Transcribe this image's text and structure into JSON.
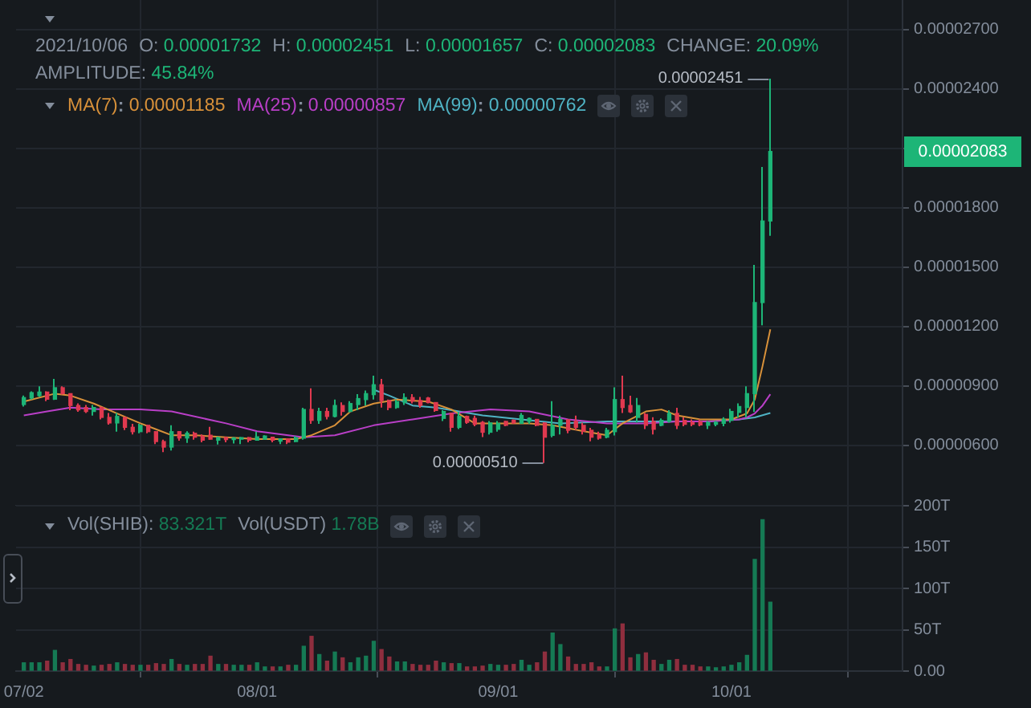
{
  "chart_data": [
    {
      "type": "candlestick",
      "annotations": [
        "2021/10/06",
        "O: 0.00001732",
        "H: 0.00002451",
        "L: 0.00001657",
        "C: 0.00002083",
        "CHANGE: 20.09%",
        "AMPLITUDE: 45.84%",
        {
          "text": "0.00002451",
          "x": "2021-10-06",
          "y": 2.451e-05
        },
        {
          "text": "0.00000510",
          "x": "2021-09-07",
          "y": 5.1e-06
        },
        "0.00002083",
        "0.00001185",
        "0.00000857",
        "0.00000762"
      ],
      "series": [
        {
          "x": [
            "2021-07-02",
            "2021-07-03",
            "2021-07-04",
            "2021-07-05",
            "2021-07-06",
            "2021-07-07",
            "2021-07-08",
            "2021-07-09",
            "2021-07-10",
            "2021-07-11",
            "2021-07-12",
            "2021-07-13",
            "2021-07-14",
            "2021-07-15",
            "2021-07-16",
            "2021-07-17",
            "2021-07-18",
            "2021-07-19",
            "2021-07-20",
            "2021-07-21",
            "2021-07-22",
            "2021-07-23",
            "2021-07-24",
            "2021-07-25",
            "2021-07-26",
            "2021-07-27",
            "2021-07-28",
            "2021-07-29",
            "2021-07-30",
            "2021-07-31",
            "2021-08-01",
            "2021-08-02",
            "2021-08-03",
            "2021-08-04",
            "2021-08-05",
            "2021-08-06",
            "2021-08-07",
            "2021-08-08",
            "2021-08-09",
            "2021-08-10",
            "2021-08-11",
            "2021-08-12",
            "2021-08-13",
            "2021-08-14",
            "2021-08-15",
            "2021-08-16",
            "2021-08-17",
            "2021-08-18",
            "2021-08-19",
            "2021-08-20",
            "2021-08-21",
            "2021-08-22",
            "2021-08-23",
            "2021-08-24",
            "2021-08-25",
            "2021-08-26",
            "2021-08-27",
            "2021-08-28",
            "2021-08-29",
            "2021-08-30",
            "2021-08-31",
            "2021-09-01",
            "2021-09-02",
            "2021-09-03",
            "2021-09-04",
            "2021-09-05",
            "2021-09-06",
            "2021-09-07",
            "2021-09-08",
            "2021-09-09",
            "2021-09-10",
            "2021-09-11",
            "2021-09-12",
            "2021-09-13",
            "2021-09-14",
            "2021-09-15",
            "2021-09-16",
            "2021-09-17",
            "2021-09-18",
            "2021-09-19",
            "2021-09-20",
            "2021-09-21",
            "2021-09-22",
            "2021-09-23",
            "2021-09-24",
            "2021-09-25",
            "2021-09-26",
            "2021-09-27",
            "2021-09-28",
            "2021-09-29",
            "2021-09-30",
            "2021-10-01",
            "2021-10-02",
            "2021-10-03",
            "2021-10-04",
            "2021-10-05",
            "2021-10-06"
          ],
          "ohlc": [
            [
              8.05e-06,
              8.5e-06,
              7.95e-06,
              8.4e-06
            ],
            [
              8.38e-06,
              8.72e-06,
              8.3e-06,
              8.65e-06
            ],
            [
              8.5e-06,
              8.97e-06,
              8.43e-06,
              8.68e-06
            ],
            [
              8.68e-06,
              8.72e-06,
              8.22e-06,
              8.32e-06
            ],
            [
              8.32e-06,
              9.35e-06,
              8.28e-06,
              8.9e-06
            ],
            [
              8.9e-06,
              8.97e-06,
              8.55e-06,
              8.6e-06
            ],
            [
              8.6e-06,
              8.62e-06,
              7.76e-06,
              8e-06
            ],
            [
              8e-06,
              8.11e-06,
              7.68e-06,
              7.78e-06
            ],
            [
              7.9e-06,
              8.03e-06,
              7.62e-06,
              7.7e-06
            ],
            [
              7.7e-06,
              8.03e-06,
              7.49e-06,
              7.9e-06
            ],
            [
              7.9e-06,
              7.95e-06,
              7.3e-06,
              7.4e-06
            ],
            [
              7.4e-06,
              7.62e-06,
              7.03e-06,
              7.12e-06
            ],
            [
              7.12e-06,
              7.62e-06,
              6.68e-06,
              7.45e-06
            ],
            [
              7.4e-06,
              7.41e-06,
              6.76e-06,
              6.9e-06
            ],
            [
              6.9e-06,
              7.08e-06,
              6.54e-06,
              6.68e-06
            ],
            [
              6.68e-06,
              7.08e-06,
              6.6e-06,
              7e-06
            ],
            [
              7e-06,
              7.03e-06,
              6.6e-06,
              6.68e-06
            ],
            [
              6.68e-06,
              6.7e-06,
              6.05e-06,
              6.18e-06
            ],
            [
              6.18e-06,
              6.27e-06,
              5.65e-06,
              5.9e-06
            ],
            [
              5.9e-06,
              7e-06,
              5.73e-06,
              6.68e-06
            ],
            [
              6.68e-06,
              6.7e-06,
              6.22e-06,
              6.36e-06
            ],
            [
              6.36e-06,
              6.7e-06,
              6.11e-06,
              6.6e-06
            ],
            [
              6.6e-06,
              6.68e-06,
              6.27e-06,
              6.4e-06
            ],
            [
              6.45e-06,
              6.54e-06,
              6.14e-06,
              6.25e-06
            ],
            [
              6.5e-06,
              6.92e-06,
              6.27e-06,
              6.3e-06
            ],
            [
              6.25e-06,
              6.43e-06,
              6.03e-06,
              6.38e-06
            ],
            [
              6.38e-06,
              6.43e-06,
              6.14e-06,
              6.28e-06
            ],
            [
              6.28e-06,
              6.41e-06,
              6.08e-06,
              6.36e-06
            ],
            [
              6.3e-06,
              6.41e-06,
              6.05e-06,
              6.38e-06
            ],
            [
              6.38e-06,
              6.41e-06,
              6.14e-06,
              6.25e-06
            ],
            [
              6.25e-06,
              6.68e-06,
              6.22e-06,
              6.42e-06
            ],
            [
              6.3e-06,
              6.5e-06,
              6.27e-06,
              6.46e-06
            ],
            [
              6.4e-06,
              6.41e-06,
              6.14e-06,
              6.25e-06
            ],
            [
              6.2e-06,
              6.35e-06,
              6.05e-06,
              6.32e-06
            ],
            [
              6.32e-06,
              6.33e-06,
              6.05e-06,
              6.15e-06
            ],
            [
              6.18e-06,
              6.46e-06,
              6.15e-06,
              6.38e-06
            ],
            [
              6.35e-06,
              7.89e-06,
              6.27e-06,
              7.8e-06
            ],
            [
              7.8e-06,
              8.87e-06,
              7.08e-06,
              7.25e-06
            ],
            [
              7.25e-06,
              7.89e-06,
              7.08e-06,
              7.7e-06
            ],
            [
              7.7e-06,
              7.89e-06,
              7.3e-06,
              7.45e-06
            ],
            [
              7.45e-06,
              8.3e-06,
              7.4e-06,
              8e-06
            ],
            [
              8e-06,
              8.16e-06,
              7.49e-06,
              7.7e-06
            ],
            [
              7.7e-06,
              8.22e-06,
              7.65e-06,
              8.1e-06
            ],
            [
              8.05e-06,
              8.57e-06,
              7.76e-06,
              8.35e-06
            ],
            [
              8.3e-06,
              8.76e-06,
              8e-06,
              8.6e-06
            ],
            [
              8.55e-06,
              9.51e-06,
              8.3e-06,
              9.05e-06
            ],
            [
              9.05e-06,
              9.35e-06,
              7.9e-06,
              8.25e-06
            ],
            [
              8.25e-06,
              8.3e-06,
              7.76e-06,
              7.9e-06
            ],
            [
              7.9e-06,
              8.3e-06,
              7.84e-06,
              8.2e-06
            ],
            [
              8.15e-06,
              8.62e-06,
              8.03e-06,
              8.4e-06
            ],
            [
              8.4e-06,
              8.57e-06,
              8.11e-06,
              8.22e-06
            ],
            [
              8.25e-06,
              8.43e-06,
              7.89e-06,
              8e-06
            ],
            [
              8.38e-06,
              8.43e-06,
              8.11e-06,
              8.15e-06
            ],
            [
              8.15e-06,
              8.16e-06,
              7.68e-06,
              7.75e-06
            ],
            [
              7.35e-06,
              7.76e-06,
              7.22e-06,
              7.7e-06
            ],
            [
              7.6e-06,
              7.62e-06,
              6.68e-06,
              6.9e-06
            ],
            [
              6.9e-06,
              7.68e-06,
              6.81e-06,
              7.45e-06
            ],
            [
              7.45e-06,
              7.49e-06,
              7.08e-06,
              7.15e-06
            ],
            [
              7.35e-06,
              7.49e-06,
              6.95e-06,
              7.05e-06
            ],
            [
              7.15e-06,
              7.22e-06,
              6.41e-06,
              6.65e-06
            ],
            [
              6.65e-06,
              7.22e-06,
              6.54e-06,
              7.12e-06
            ],
            [
              6.8e-06,
              7.22e-06,
              6.68e-06,
              7.1e-06
            ],
            [
              7.2e-06,
              7.22e-06,
              6.95e-06,
              7e-06
            ],
            [
              7.25e-06,
              7.3e-06,
              7.08e-06,
              7.12e-06
            ],
            [
              7.1e-06,
              7.62e-06,
              7.08e-06,
              7.5e-06
            ],
            [
              7.2e-06,
              7.4e-06,
              7.08e-06,
              7.35e-06
            ],
            [
              7.3e-06,
              7.32e-06,
              6.95e-06,
              7e-06
            ],
            [
              7.12e-06,
              7.16e-06,
              5.1e-06,
              6.4e-06
            ],
            [
              6.49e-06,
              8.22e-06,
              6.4e-06,
              7e-06
            ],
            [
              7e-06,
              7.49e-06,
              6.54e-06,
              7.3e-06
            ],
            [
              7.28e-06,
              7.3e-06,
              6.6e-06,
              6.75e-06
            ],
            [
              7.2e-06,
              7.49e-06,
              6.76e-06,
              6.9e-06
            ],
            [
              7e-06,
              7.14e-06,
              6.54e-06,
              6.7e-06
            ],
            [
              6.75e-06,
              6.87e-06,
              6.19e-06,
              6.4e-06
            ],
            [
              6.5e-06,
              6.68e-06,
              6.27e-06,
              6.35e-06
            ],
            [
              6.4e-06,
              6.87e-06,
              6.35e-06,
              6.75e-06
            ],
            [
              6.68e-06,
              8.92e-06,
              6.49e-06,
              8.3e-06
            ],
            [
              8.3e-06,
              9.51e-06,
              7.62e-06,
              7.9e-06
            ],
            [
              8e-06,
              8.49e-06,
              7.62e-06,
              7.68e-06
            ],
            [
              7.4e-06,
              8.38e-06,
              7.14e-06,
              8e-06
            ],
            [
              7.55e-06,
              7.62e-06,
              6.81e-06,
              7e-06
            ],
            [
              7.2e-06,
              7.41e-06,
              6.54e-06,
              6.8e-06
            ],
            [
              7e-06,
              7.35e-06,
              6.95e-06,
              7.25e-06
            ],
            [
              7.2e-06,
              7.76e-06,
              7.14e-06,
              7.6e-06
            ],
            [
              7.6e-06,
              7.89e-06,
              6.81e-06,
              7e-06
            ],
            [
              7.25e-06,
              7.41e-06,
              6.95e-06,
              7.05e-06
            ],
            [
              7.15e-06,
              7.3e-06,
              6.95e-06,
              7.05e-06
            ],
            [
              7.18e-06,
              7.3e-06,
              6.95e-06,
              7.02e-06
            ],
            [
              7e-06,
              7.22e-06,
              6.81e-06,
              7.15e-06
            ],
            [
              7.05e-06,
              7.22e-06,
              6.95e-06,
              7.15e-06
            ],
            [
              7.1e-06,
              7.41e-06,
              6.95e-06,
              7.3e-06
            ],
            [
              7.25e-06,
              7.84e-06,
              7.14e-06,
              7.7e-06
            ],
            [
              7.65e-06,
              8.11e-06,
              7.4e-06,
              7.95e-06
            ],
            [
              7.9e-06,
              8.97e-06,
              7.4e-06,
              8.6e-06
            ],
            [
              8.6e-06,
              1.51e-05,
              7.67e-06,
              1.32e-05
            ],
            [
              1.32e-05,
              2.005e-05,
              1.205e-05,
              1.732e-05
            ],
            [
              1.732e-05,
              2.451e-05,
              1.657e-05,
              2.083e-05
            ]
          ],
          "colors": [
            "#1db577",
            "#1db577",
            "#1db577",
            "#e0394f",
            "#1db577",
            "#e0394f",
            "#e0394f",
            "#e0394f",
            "#e0394f",
            "#1db577",
            "#e0394f",
            "#e0394f",
            "#1db577",
            "#e0394f",
            "#e0394f",
            "#1db577",
            "#e0394f",
            "#e0394f",
            "#e0394f",
            "#1db577",
            "#e0394f",
            "#1db577",
            "#e0394f",
            "#e0394f",
            "#e0394f",
            "#1db577",
            "#e0394f",
            "#1db577",
            "#1db577",
            "#e0394f",
            "#1db577",
            "#1db577",
            "#e0394f",
            "#1db577",
            "#e0394f",
            "#1db577",
            "#1db577",
            "#e0394f",
            "#1db577",
            "#e0394f",
            "#1db577",
            "#e0394f",
            "#1db577",
            "#1db577",
            "#1db577",
            "#1db577",
            "#e0394f",
            "#e0394f",
            "#1db577",
            "#1db577",
            "#e0394f",
            "#e0394f",
            "#e0394f",
            "#e0394f",
            "#1db577",
            "#e0394f",
            "#1db577",
            "#e0394f",
            "#e0394f",
            "#e0394f",
            "#1db577",
            "#1db577",
            "#e0394f",
            "#e0394f",
            "#1db577",
            "#1db577",
            "#e0394f",
            "#e0394f",
            "#1db577",
            "#1db577",
            "#e0394f",
            "#e0394f",
            "#e0394f",
            "#e0394f",
            "#e0394f",
            "#1db577",
            "#1db577",
            "#e0394f",
            "#e0394f",
            "#1db577",
            "#e0394f",
            "#e0394f",
            "#1db577",
            "#1db577",
            "#e0394f",
            "#e0394f",
            "#e0394f",
            "#e0394f",
            "#1db577",
            "#1db577",
            "#1db577",
            "#1db577",
            "#1db577",
            "#1db577",
            "#1db577",
            "#1db577",
            "#1db577"
          ]
        },
        {
          "type": "line",
          "name": "MA(7)",
          "color": "#d8913a",
          "x": [
            "2021-07-02",
            "2021-07-06",
            "2021-07-08",
            "2021-07-11",
            "2021-07-14",
            "2021-07-17",
            "2021-07-19",
            "2021-07-21",
            "2021-07-24",
            "2021-07-28",
            "2021-08-01",
            "2021-08-06",
            "2021-08-08",
            "2021-08-11",
            "2021-08-13",
            "2021-08-16",
            "2021-08-19",
            "2021-08-23",
            "2021-08-26",
            "2021-08-29",
            "2021-09-01",
            "2021-09-05",
            "2021-09-08",
            "2021-09-12",
            "2021-09-15",
            "2021-09-17",
            "2021-09-20",
            "2021-09-22",
            "2021-09-24",
            "2021-09-27",
            "2021-10-01",
            "2021-10-03",
            "2021-10-04",
            "2021-10-05",
            "2021-10-06"
          ],
          "values": [
            8.2e-06,
            8.6e-06,
            8.5e-06,
            8.1e-06,
            7.6e-06,
            7.1e-06,
            6.8e-06,
            6.5e-06,
            6.5e-06,
            6.4e-06,
            6.3e-06,
            6.3e-06,
            6.5e-06,
            7e-06,
            7.7e-06,
            8.1e-06,
            8.3e-06,
            8.2e-06,
            7.8e-06,
            7.1e-06,
            7.1e-06,
            7.1e-06,
            7e-06,
            6.7e-06,
            6.5e-06,
            7.1e-06,
            7.7e-06,
            7.8e-06,
            7.5e-06,
            7.3e-06,
            7.3e-06,
            7.6e-06,
            8.3e-06,
            1e-05,
            1.185e-05
          ]
        },
        {
          "type": "line",
          "name": "MA(25)",
          "color": "#b93fc7",
          "x": [
            "2021-07-02",
            "2021-07-05",
            "2021-07-08",
            "2021-07-12",
            "2021-07-17",
            "2021-07-21",
            "2021-07-28",
            "2021-08-01",
            "2021-08-07",
            "2021-08-11",
            "2021-08-16",
            "2021-08-21",
            "2021-08-26",
            "2021-08-31",
            "2021-09-05",
            "2021-09-10",
            "2021-09-15",
            "2021-09-20",
            "2021-09-24",
            "2021-09-28",
            "2021-10-02",
            "2021-10-03",
            "2021-10-04",
            "2021-10-05",
            "2021-10-06"
          ],
          "values": [
            7.5e-06,
            7.7e-06,
            7.9e-06,
            7.8e-06,
            7.8e-06,
            7.7e-06,
            7.1e-06,
            6.7e-06,
            6.4e-06,
            6.5e-06,
            7e-06,
            7.3e-06,
            7.6e-06,
            7.8e-06,
            7.7e-06,
            7.3e-06,
            7.1e-06,
            7.1e-06,
            7.2e-06,
            7.2e-06,
            7.3e-06,
            7.4e-06,
            7.6e-06,
            8e-06,
            8.57e-06
          ]
        },
        {
          "type": "line",
          "name": "MA(99)",
          "color": "#4fb3c4",
          "x": [
            "2021-08-16",
            "2021-08-18",
            "2021-08-21",
            "2021-08-24",
            "2021-08-30",
            "2021-09-04",
            "2021-09-09",
            "2021-09-15",
            "2021-09-22",
            "2021-09-28",
            "2021-10-02",
            "2021-10-04",
            "2021-10-06"
          ],
          "values": [
            8.8e-06,
            8.5e-06,
            8e-06,
            7.9e-06,
            7.5e-06,
            7.3e-06,
            7.1e-06,
            7.2e-06,
            7.2e-06,
            7.2e-06,
            7.3e-06,
            7.4e-06,
            7.62e-06
          ]
        }
      ],
      "xlim": [
        "2021-07-01",
        "2021-10-23"
      ],
      "xticks": [
        {
          "value": "2021-07-02",
          "label": null
        },
        {
          "value": "2021-08-01",
          "label": null
        },
        {
          "value": "2021-09-01",
          "label": null
        },
        {
          "value": "2021-10-01",
          "label": null
        }
      ],
      "ylim": [
        2.94e-06,
        2.848e-05
      ],
      "yticks": [
        {
          "value": 6e-06,
          "label": "0.00000600"
        },
        {
          "value": 9e-06,
          "label": "0.00000900"
        },
        {
          "value": 1.2e-05,
          "label": "0.00001200"
        },
        {
          "value": 1.5e-05,
          "label": "0.00001500"
        },
        {
          "value": 1.8e-05,
          "label": "0.00001800"
        },
        {
          "value": 2.1e-05,
          "label": null
        },
        {
          "value": 2.4e-05,
          "label": "0.00002400"
        },
        {
          "value": 2.7e-05,
          "label": "0.00002700"
        }
      ],
      "grid": true,
      "legend": "top left",
      "tick_labels": "y"
    },
    {
      "type": "bar",
      "annotations": [
        "Vol(SHIB): 83.321T",
        "Vol(USDT) 1.78B"
      ],
      "x": [
        "2021-07-02",
        "2021-07-03",
        "2021-07-04",
        "2021-07-05",
        "2021-07-06",
        "2021-07-07",
        "2021-07-08",
        "2021-07-09",
        "2021-07-10",
        "2021-07-11",
        "2021-07-12",
        "2021-07-13",
        "2021-07-14",
        "2021-07-15",
        "2021-07-16",
        "2021-07-17",
        "2021-07-18",
        "2021-07-19",
        "2021-07-20",
        "2021-07-21",
        "2021-07-22",
        "2021-07-23",
        "2021-07-24",
        "2021-07-25",
        "2021-07-26",
        "2021-07-27",
        "2021-07-28",
        "2021-07-29",
        "2021-07-30",
        "2021-07-31",
        "2021-08-01",
        "2021-08-02",
        "2021-08-03",
        "2021-08-04",
        "2021-08-05",
        "2021-08-06",
        "2021-08-07",
        "2021-08-08",
        "2021-08-09",
        "2021-08-10",
        "2021-08-11",
        "2021-08-12",
        "2021-08-13",
        "2021-08-14",
        "2021-08-15",
        "2021-08-16",
        "2021-08-17",
        "2021-08-18",
        "2021-08-19",
        "2021-08-20",
        "2021-08-21",
        "2021-08-22",
        "2021-08-23",
        "2021-08-24",
        "2021-08-25",
        "2021-08-26",
        "2021-08-27",
        "2021-08-28",
        "2021-08-29",
        "2021-08-30",
        "2021-08-31",
        "2021-09-01",
        "2021-09-02",
        "2021-09-03",
        "2021-09-04",
        "2021-09-05",
        "2021-09-06",
        "2021-09-07",
        "2021-09-08",
        "2021-09-09",
        "2021-09-10",
        "2021-09-11",
        "2021-09-12",
        "2021-09-13",
        "2021-09-14",
        "2021-09-15",
        "2021-09-16",
        "2021-09-17",
        "2021-09-18",
        "2021-09-19",
        "2021-09-20",
        "2021-09-21",
        "2021-09-22",
        "2021-09-23",
        "2021-09-24",
        "2021-09-25",
        "2021-09-26",
        "2021-09-27",
        "2021-09-28",
        "2021-09-29",
        "2021-09-30",
        "2021-10-01",
        "2021-10-02",
        "2021-10-03",
        "2021-10-04",
        "2021-10-05",
        "2021-10-06"
      ],
      "values": [
        10,
        10,
        10,
        12,
        25,
        10,
        14,
        8,
        7,
        6,
        7,
        8,
        10,
        8,
        7,
        7,
        7,
        9,
        8,
        14,
        8,
        7,
        8,
        8,
        18,
        8,
        8,
        7,
        7,
        7,
        10,
        5,
        5,
        5,
        7,
        7,
        30,
        42,
        20,
        12,
        23,
        16,
        10,
        16,
        18,
        36,
        26,
        17,
        11,
        11,
        8,
        7,
        7,
        12,
        10,
        9,
        9,
        5,
        5,
        6,
        8,
        7,
        7,
        8,
        13,
        7,
        10,
        23,
        46,
        32,
        17,
        8,
        8,
        10,
        5,
        5,
        51,
        57,
        16,
        20,
        22,
        13,
        8,
        13,
        14,
        7,
        7,
        5,
        5,
        4,
        5,
        7,
        10,
        19,
        135,
        183,
        83.321
      ],
      "colors": [
        "#157a54",
        "#157a54",
        "#157a54",
        "#8f2e3e",
        "#157a54",
        "#8f2e3e",
        "#8f2e3e",
        "#8f2e3e",
        "#8f2e3e",
        "#157a54",
        "#8f2e3e",
        "#8f2e3e",
        "#157a54",
        "#8f2e3e",
        "#8f2e3e",
        "#157a54",
        "#8f2e3e",
        "#8f2e3e",
        "#8f2e3e",
        "#157a54",
        "#8f2e3e",
        "#157a54",
        "#8f2e3e",
        "#8f2e3e",
        "#8f2e3e",
        "#157a54",
        "#8f2e3e",
        "#157a54",
        "#157a54",
        "#8f2e3e",
        "#157a54",
        "#157a54",
        "#8f2e3e",
        "#157a54",
        "#8f2e3e",
        "#157a54",
        "#157a54",
        "#8f2e3e",
        "#157a54",
        "#8f2e3e",
        "#157a54",
        "#8f2e3e",
        "#157a54",
        "#157a54",
        "#157a54",
        "#157a54",
        "#8f2e3e",
        "#8f2e3e",
        "#157a54",
        "#157a54",
        "#8f2e3e",
        "#8f2e3e",
        "#8f2e3e",
        "#8f2e3e",
        "#157a54",
        "#8f2e3e",
        "#157a54",
        "#8f2e3e",
        "#8f2e3e",
        "#8f2e3e",
        "#157a54",
        "#157a54",
        "#8f2e3e",
        "#8f2e3e",
        "#157a54",
        "#157a54",
        "#8f2e3e",
        "#8f2e3e",
        "#157a54",
        "#157a54",
        "#8f2e3e",
        "#8f2e3e",
        "#8f2e3e",
        "#8f2e3e",
        "#8f2e3e",
        "#157a54",
        "#157a54",
        "#8f2e3e",
        "#8f2e3e",
        "#157a54",
        "#8f2e3e",
        "#8f2e3e",
        "#157a54",
        "#157a54",
        "#8f2e3e",
        "#8f2e3e",
        "#8f2e3e",
        "#8f2e3e",
        "#157a54",
        "#157a54",
        "#157a54",
        "#157a54",
        "#157a54",
        "#157a54",
        "#157a54",
        "#157a54",
        "#157a54"
      ],
      "xlim": [
        "2021-07-01",
        "2021-10-23"
      ],
      "xticks": [
        {
          "value": "2021-07-02",
          "label": "07/02"
        },
        {
          "value": "2021-08-01",
          "label": "08/01"
        },
        {
          "value": "2021-09-01",
          "label": "09/01"
        },
        {
          "value": "2021-10-01",
          "label": "10/01"
        }
      ],
      "ylim": [
        0,
        200
      ],
      "yticks": [
        {
          "value": 0,
          "label": "0.00"
        },
        {
          "value": 50,
          "label": "50T"
        },
        {
          "value": 100,
          "label": "100T"
        },
        {
          "value": 150,
          "label": "150T"
        },
        {
          "value": 200,
          "label": "200T"
        }
      ],
      "grid": true
    }
  ]
}
